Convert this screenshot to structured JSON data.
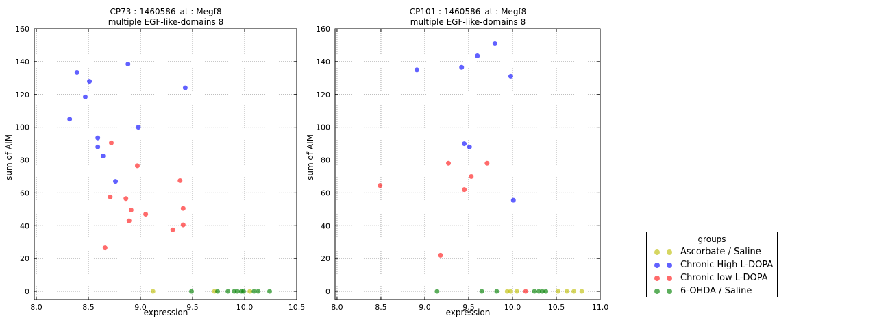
{
  "figure": {
    "background": "#ffffff"
  },
  "legend": {
    "title": "groups",
    "entries": [
      {
        "label": "Ascorbate / Saline",
        "color": "rgba(189,189,0,0.62)"
      },
      {
        "label": "Chronic High L-DOPA",
        "color": "rgba(0,0,255,0.62)"
      },
      {
        "label": "Chronic low L-DOPA",
        "color": "rgba(255,0,0,0.58)"
      },
      {
        "label": "6-OHDA / Saline",
        "color": "rgba(0,128,0,0.64)"
      }
    ]
  },
  "chart_data": [
    {
      "type": "scatter",
      "title": "CP73 : 1460586_at : Megf8",
      "subtitle": "multiple EGF-like-domains 8",
      "xlabel": "expression",
      "ylabel": "sum of AIM",
      "xlim": [
        7.98,
        10.5
      ],
      "ylim": [
        -5,
        160
      ],
      "xticks": [
        8.0,
        8.5,
        9.0,
        9.5,
        10.0,
        10.5
      ],
      "yticks": [
        0,
        20,
        40,
        60,
        80,
        100,
        120,
        140,
        160
      ],
      "grid": true,
      "legend_position": "outside-right",
      "series": [
        {
          "name": "Ascorbate / Saline",
          "points": [
            [
              9.12,
              0
            ],
            [
              9.71,
              0
            ],
            [
              10.05,
              0
            ]
          ]
        },
        {
          "name": "Chronic High L-DOPA",
          "points": [
            [
              8.32,
              105
            ],
            [
              8.39,
              133.5
            ],
            [
              8.47,
              118.5
            ],
            [
              8.51,
              128
            ],
            [
              8.59,
              93.5
            ],
            [
              8.59,
              88
            ],
            [
              8.64,
              82.5
            ],
            [
              8.76,
              67
            ],
            [
              8.88,
              138.5
            ],
            [
              8.98,
              100
            ],
            [
              9.43,
              124
            ]
          ]
        },
        {
          "name": "Chronic low L-DOPA",
          "points": [
            [
              8.66,
              26.5
            ],
            [
              8.71,
              57.5
            ],
            [
              8.72,
              90.5
            ],
            [
              8.86,
              56.5
            ],
            [
              8.89,
              43
            ],
            [
              8.91,
              49.5
            ],
            [
              8.97,
              76.5
            ],
            [
              9.05,
              47
            ],
            [
              9.31,
              37.5
            ],
            [
              9.38,
              67.5
            ],
            [
              9.41,
              50.5
            ],
            [
              9.41,
              40.5
            ]
          ]
        },
        {
          "name": "6-OHDA / Saline",
          "points": [
            [
              9.49,
              0
            ],
            [
              9.74,
              0
            ],
            [
              9.84,
              0
            ],
            [
              9.9,
              0
            ],
            [
              9.93,
              0
            ],
            [
              9.97,
              0
            ],
            [
              9.99,
              0
            ],
            [
              10.09,
              0
            ],
            [
              10.13,
              0
            ],
            [
              10.24,
              0
            ]
          ]
        }
      ]
    },
    {
      "type": "scatter",
      "title": "CP101 : 1460586_at : Megf8",
      "subtitle": "multiple EGF-like-domains 8",
      "xlabel": "expression",
      "ylabel": "sum of AIM",
      "xlim": [
        7.977,
        11.0
      ],
      "ylim": [
        -5,
        160
      ],
      "xticks": [
        8.0,
        8.5,
        9.0,
        9.5,
        10.0,
        10.5,
        11.0
      ],
      "yticks": [
        0,
        20,
        40,
        60,
        80,
        100,
        120,
        140,
        160
      ],
      "grid": true,
      "legend_position": "outside-right",
      "series": [
        {
          "name": "Ascorbate / Saline",
          "points": [
            [
              9.94,
              0
            ],
            [
              9.98,
              0
            ],
            [
              10.05,
              0
            ],
            [
              10.52,
              0
            ],
            [
              10.62,
              0
            ],
            [
              10.7,
              0
            ],
            [
              10.79,
              0
            ]
          ]
        },
        {
          "name": "Chronic High L-DOPA",
          "points": [
            [
              8.91,
              135
            ],
            [
              9.42,
              136.5
            ],
            [
              9.45,
              90
            ],
            [
              9.51,
              88
            ],
            [
              9.6,
              143.5
            ],
            [
              9.8,
              151
            ],
            [
              9.98,
              131
            ],
            [
              10.01,
              55.5
            ]
          ]
        },
        {
          "name": "Chronic low L-DOPA",
          "points": [
            [
              8.49,
              64.5
            ],
            [
              9.18,
              22
            ],
            [
              9.27,
              78
            ],
            [
              9.45,
              62
            ],
            [
              9.53,
              70
            ],
            [
              9.71,
              78
            ],
            [
              10.15,
              0
            ]
          ]
        },
        {
          "name": "6-OHDA / Saline",
          "points": [
            [
              9.14,
              0
            ],
            [
              9.65,
              0
            ],
            [
              9.82,
              0
            ],
            [
              10.25,
              0
            ],
            [
              10.3,
              0
            ],
            [
              10.34,
              0
            ],
            [
              10.38,
              0
            ]
          ]
        }
      ]
    }
  ]
}
